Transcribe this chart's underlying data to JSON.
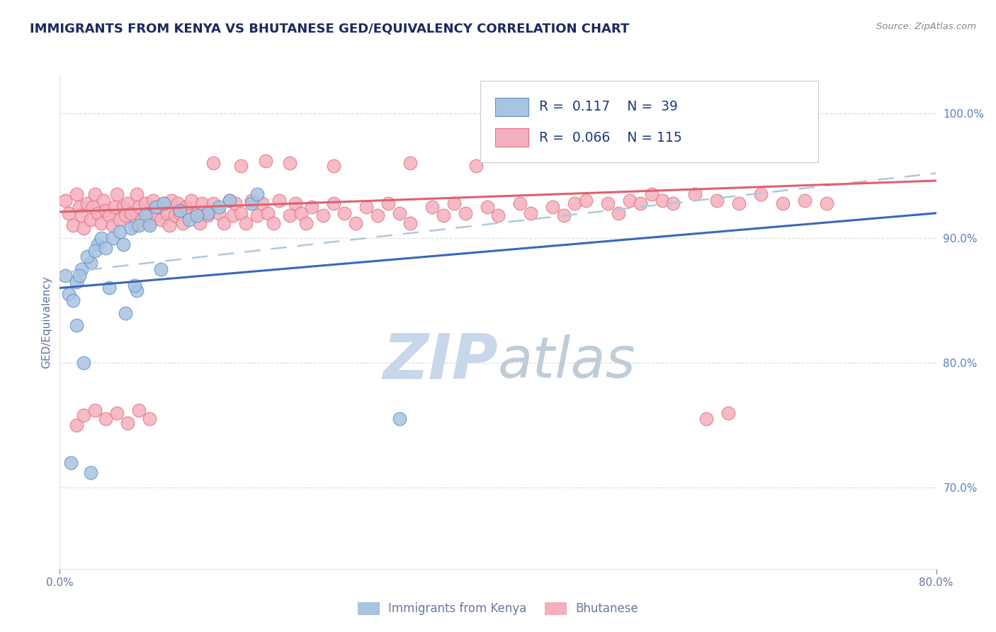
{
  "title": "IMMIGRANTS FROM KENYA VS BHUTANESE GED/EQUIVALENCY CORRELATION CHART",
  "source_text": "Source: ZipAtlas.com",
  "ylabel": "GED/Equivalency",
  "xlim": [
    0.0,
    0.8
  ],
  "ylim": [
    0.635,
    1.03
  ],
  "ytick_vals": [
    0.7,
    0.8,
    0.9,
    1.0
  ],
  "legend_blue_label": "Immigrants from Kenya",
  "legend_pink_label": "Bhutanese",
  "legend_R_blue": "0.117",
  "legend_N_blue": "39",
  "legend_R_pink": "0.066",
  "legend_N_pink": "115",
  "blue_fill": "#a8c4e0",
  "pink_fill": "#f4b0bc",
  "blue_edge": "#6090c8",
  "pink_edge": "#e87080",
  "blue_line_color": "#3a68b8",
  "pink_line_color": "#e06070",
  "dash_line_color": "#b0c8e0",
  "watermark_zip_color": "#c8d8ea",
  "watermark_atlas_color": "#c0ccd8",
  "background_color": "#ffffff",
  "title_color": "#1a2a5e",
  "source_color": "#888888",
  "axis_label_color": "#6070a0",
  "right_tick_color": "#5a80c0",
  "grid_color": "#e0e0e0",
  "legend_text_color": "#1a3a7a",
  "bottom_label_color": "#6878a0",
  "blue_x": [
    0.028,
    0.005,
    0.035,
    0.02,
    0.015,
    0.008,
    0.012,
    0.038,
    0.025,
    0.048,
    0.032,
    0.018,
    0.055,
    0.042,
    0.065,
    0.058,
    0.078,
    0.072,
    0.088,
    0.095,
    0.082,
    0.11,
    0.135,
    0.118,
    0.155,
    0.175,
    0.01,
    0.022,
    0.045,
    0.125,
    0.07,
    0.092,
    0.06,
    0.145,
    0.028,
    0.015,
    0.31,
    0.068,
    0.18
  ],
  "blue_y": [
    0.88,
    0.87,
    0.895,
    0.875,
    0.865,
    0.855,
    0.85,
    0.9,
    0.885,
    0.9,
    0.89,
    0.87,
    0.905,
    0.892,
    0.908,
    0.895,
    0.918,
    0.91,
    0.925,
    0.928,
    0.91,
    0.922,
    0.92,
    0.915,
    0.93,
    0.928,
    0.72,
    0.8,
    0.86,
    0.918,
    0.858,
    0.875,
    0.84,
    0.925,
    0.712,
    0.83,
    0.755,
    0.862,
    0.935
  ],
  "pink_x": [
    0.005,
    0.008,
    0.012,
    0.015,
    0.018,
    0.02,
    0.022,
    0.025,
    0.028,
    0.03,
    0.032,
    0.035,
    0.038,
    0.04,
    0.042,
    0.045,
    0.048,
    0.05,
    0.052,
    0.055,
    0.058,
    0.06,
    0.062,
    0.065,
    0.068,
    0.07,
    0.072,
    0.075,
    0.078,
    0.08,
    0.082,
    0.085,
    0.088,
    0.09,
    0.092,
    0.095,
    0.098,
    0.1,
    0.102,
    0.105,
    0.108,
    0.11,
    0.112,
    0.115,
    0.118,
    0.12,
    0.125,
    0.128,
    0.13,
    0.135,
    0.14,
    0.145,
    0.15,
    0.155,
    0.158,
    0.16,
    0.165,
    0.17,
    0.175,
    0.18,
    0.185,
    0.19,
    0.195,
    0.2,
    0.21,
    0.215,
    0.22,
    0.225,
    0.23,
    0.24,
    0.25,
    0.26,
    0.27,
    0.28,
    0.29,
    0.3,
    0.31,
    0.32,
    0.34,
    0.35,
    0.36,
    0.37,
    0.39,
    0.4,
    0.42,
    0.43,
    0.45,
    0.46,
    0.47,
    0.48,
    0.5,
    0.51,
    0.52,
    0.53,
    0.54,
    0.55,
    0.56,
    0.58,
    0.6,
    0.62,
    0.64,
    0.66,
    0.68,
    0.7,
    0.14,
    0.165,
    0.188,
    0.21,
    0.25,
    0.32,
    0.38,
    0.59,
    0.61,
    0.015,
    0.022,
    0.032,
    0.042,
    0.052,
    0.062,
    0.072,
    0.082
  ],
  "pink_y": [
    0.93,
    0.92,
    0.91,
    0.935,
    0.925,
    0.918,
    0.908,
    0.928,
    0.915,
    0.925,
    0.935,
    0.92,
    0.912,
    0.93,
    0.922,
    0.918,
    0.91,
    0.925,
    0.935,
    0.915,
    0.925,
    0.918,
    0.928,
    0.92,
    0.91,
    0.935,
    0.925,
    0.915,
    0.928,
    0.92,
    0.912,
    0.93,
    0.918,
    0.925,
    0.915,
    0.928,
    0.92,
    0.91,
    0.93,
    0.918,
    0.928,
    0.92,
    0.912,
    0.925,
    0.918,
    0.93,
    0.92,
    0.912,
    0.928,
    0.918,
    0.928,
    0.92,
    0.912,
    0.93,
    0.918,
    0.928,
    0.92,
    0.912,
    0.93,
    0.918,
    0.928,
    0.92,
    0.912,
    0.93,
    0.918,
    0.928,
    0.92,
    0.912,
    0.925,
    0.918,
    0.928,
    0.92,
    0.912,
    0.925,
    0.918,
    0.928,
    0.92,
    0.912,
    0.925,
    0.918,
    0.928,
    0.92,
    0.925,
    0.918,
    0.928,
    0.92,
    0.925,
    0.918,
    0.928,
    0.93,
    0.928,
    0.92,
    0.93,
    0.928,
    0.935,
    0.93,
    0.928,
    0.935,
    0.93,
    0.928,
    0.935,
    0.928,
    0.93,
    0.928,
    0.96,
    0.958,
    0.962,
    0.96,
    0.958,
    0.96,
    0.958,
    0.755,
    0.76,
    0.75,
    0.758,
    0.762,
    0.755,
    0.76,
    0.752,
    0.762,
    0.755
  ],
  "blue_trend": [
    0.0,
    0.8,
    0.86,
    0.92
  ],
  "pink_trend": [
    0.0,
    0.8,
    0.921,
    0.946
  ],
  "dash_trend": [
    0.0,
    0.8,
    0.872,
    0.952
  ]
}
